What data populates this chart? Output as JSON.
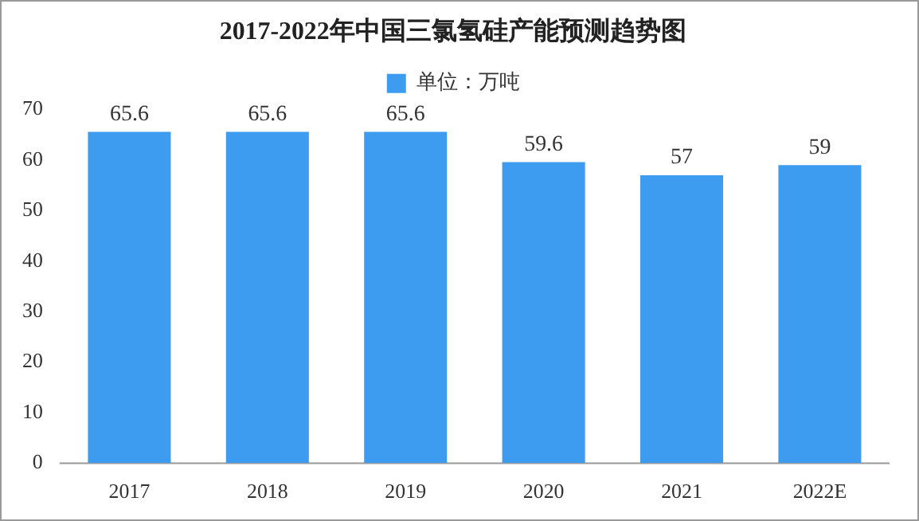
{
  "chart_data": {
    "type": "bar",
    "title": "2017-2022年中国三氯氢硅产能预测趋势图",
    "categories": [
      "2017",
      "2018",
      "2019",
      "2020",
      "2021",
      "2022E"
    ],
    "series": [
      {
        "name": "单位：万吨",
        "color": "#3d9cf0",
        "values": [
          65.6,
          65.6,
          65.6,
          59.6,
          57,
          59
        ]
      }
    ],
    "ylim": [
      0,
      70
    ],
    "yticks": [
      0,
      10,
      20,
      30,
      40,
      50,
      60,
      70
    ],
    "data_labels": true,
    "legend": "top",
    "grid": false
  }
}
